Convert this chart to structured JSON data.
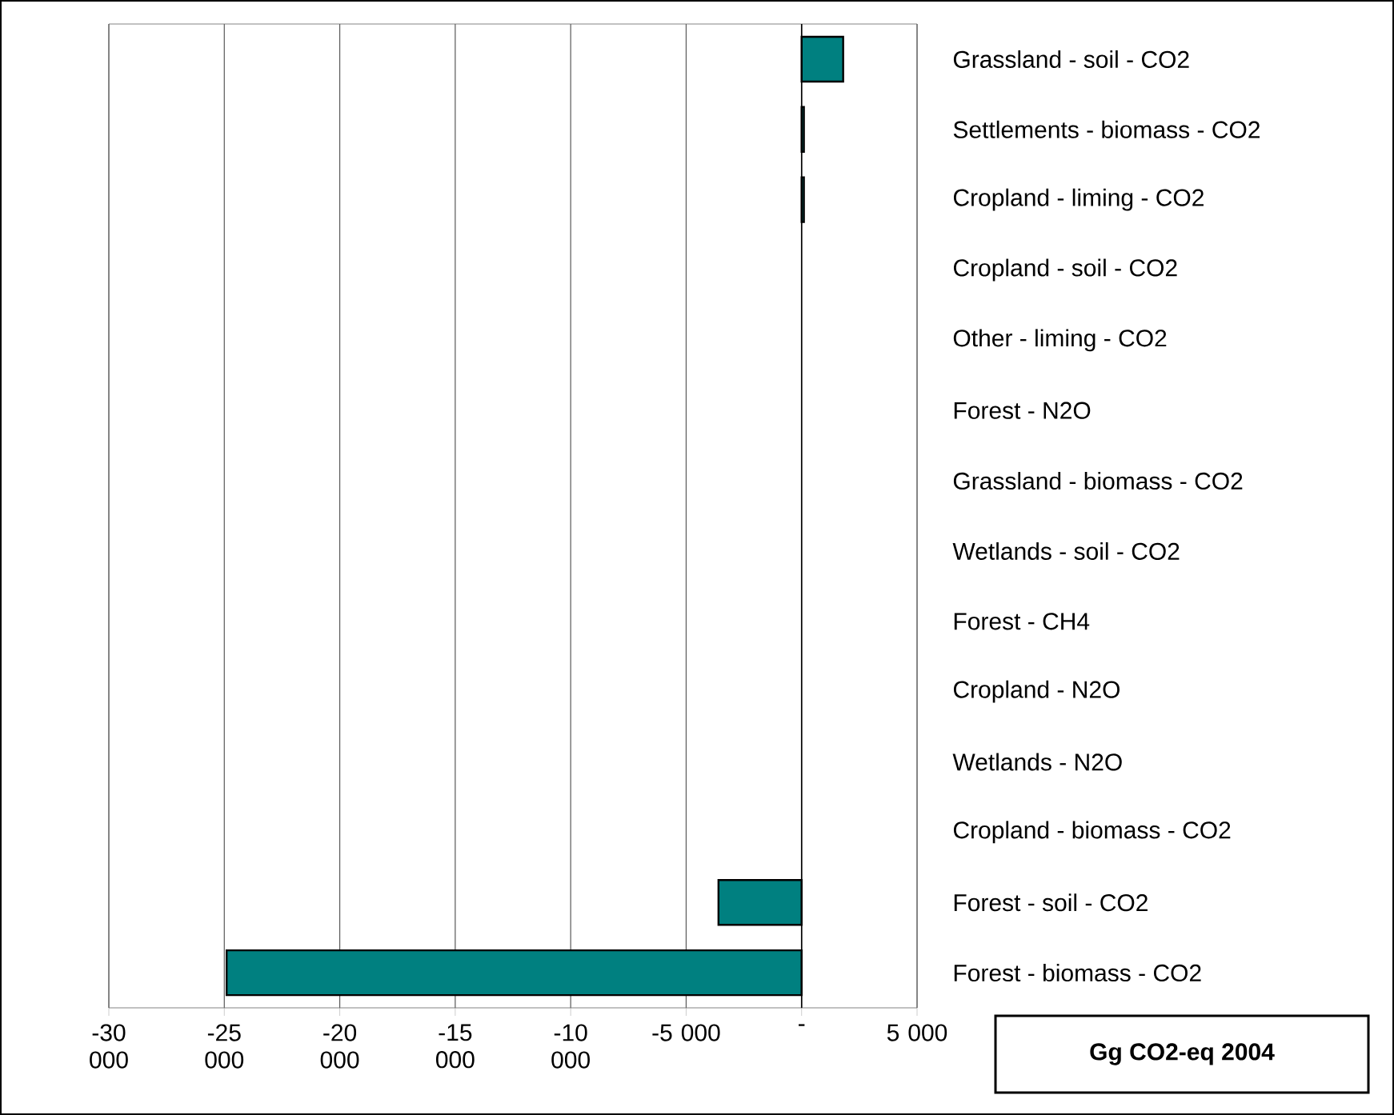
{
  "chart_data": {
    "type": "bar",
    "orientation": "horizontal",
    "title": "Gg CO2-eq 2004",
    "categories": [
      "Grassland - soil - CO2",
      "Settlements - biomass - CO2",
      "Cropland - liming - CO2",
      "Cropland - soil - CO2",
      "Other - liming - CO2",
      "Forest - N2O",
      "Grassland - biomass - CO2",
      "Wetlands - soil - CO2",
      "Forest - CH4",
      "Cropland - N2O",
      "Wetlands - N2O",
      "Cropland - biomass - CO2",
      "Forest - soil - CO2",
      "Forest - biomass - CO2"
    ],
    "values": [
      1800,
      100,
      100,
      null,
      null,
      null,
      null,
      null,
      null,
      null,
      null,
      null,
      -3600,
      -24900
    ],
    "color": "#008080",
    "xlim": [
      -30000,
      5000
    ],
    "xticks": [
      {
        "value": -30000,
        "label": "-30 000"
      },
      {
        "value": -25000,
        "label": "-25 000"
      },
      {
        "value": -20000,
        "label": "-20 000"
      },
      {
        "value": -15000,
        "label": "-15 000"
      },
      {
        "value": -10000,
        "label": "-10 000"
      },
      {
        "value": -5000,
        "label": "-5 000"
      },
      {
        "value": 0,
        "label": "-"
      },
      {
        "value": 5000,
        "label": "5 000"
      }
    ],
    "grid": "x"
  }
}
